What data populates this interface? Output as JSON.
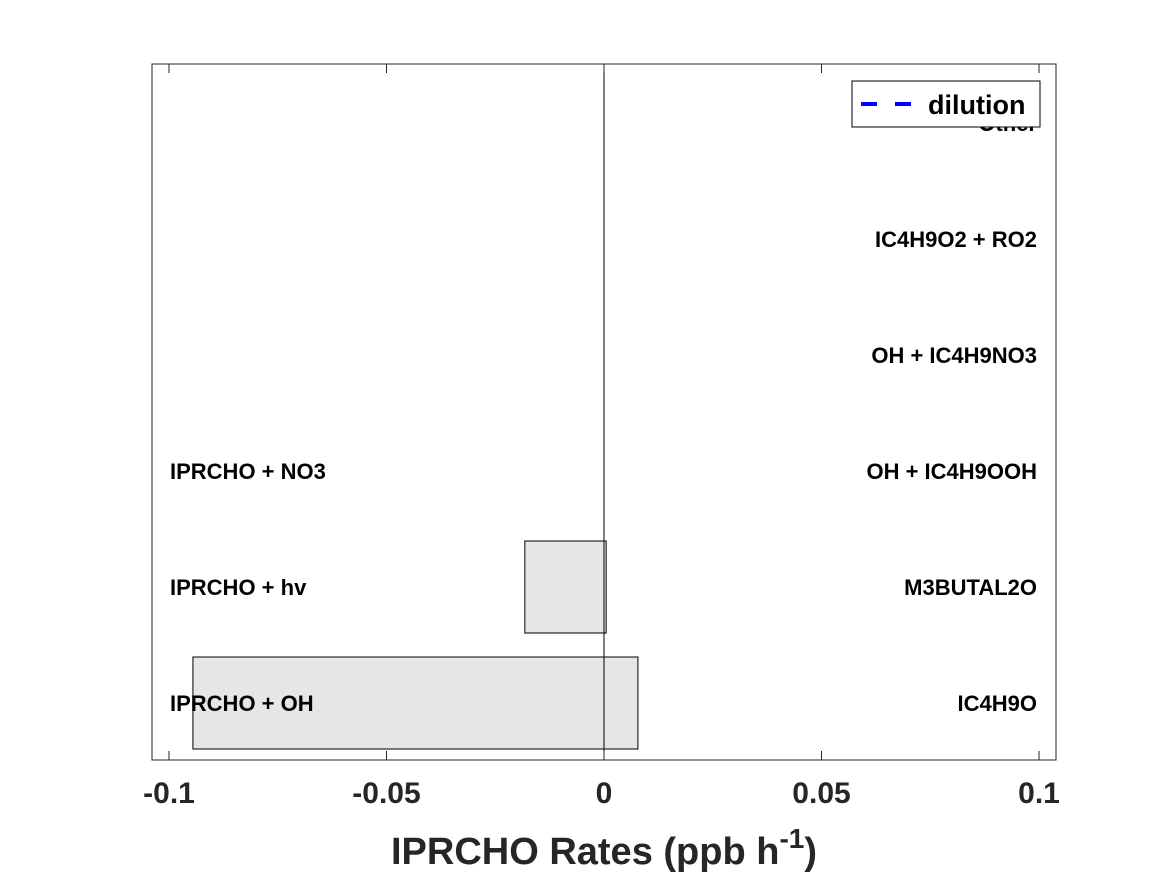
{
  "chart_data": {
    "type": "bar",
    "orientation": "horizontal",
    "xlabel": "IPRCHO Rates (ppb h",
    "xlabel_sup": "-1",
    "xlabel_suffix": ")",
    "xlim": [
      -0.1,
      0.1
    ],
    "xticks": [
      -0.1,
      -0.05,
      0,
      0.05,
      0.1
    ],
    "xtick_labels": [
      "-0.1",
      "-0.05",
      "0",
      "0.05",
      "0.1"
    ],
    "grid": false,
    "legend": {
      "placement": "top-right",
      "entries": [
        {
          "label": "dilution",
          "style": "dashed",
          "color": "#0000ff"
        }
      ]
    },
    "bar_color": "#e6e6e6",
    "loss_labels": [
      "IPRCHO + OH",
      "IPRCHO + hv",
      "IPRCHO + NO3"
    ],
    "production_labels": [
      "IC4H9O",
      "M3BUTAL2O",
      "OH + IC4H9OOH",
      "OH + IC4H9NO3",
      "IC4H9O2 + RO2",
      "Other"
    ],
    "bars": [
      {
        "row": 1,
        "start": -0.0945,
        "end": 0.0078
      },
      {
        "row": 2,
        "start": -0.0182,
        "end": 0.0005
      }
    ]
  }
}
